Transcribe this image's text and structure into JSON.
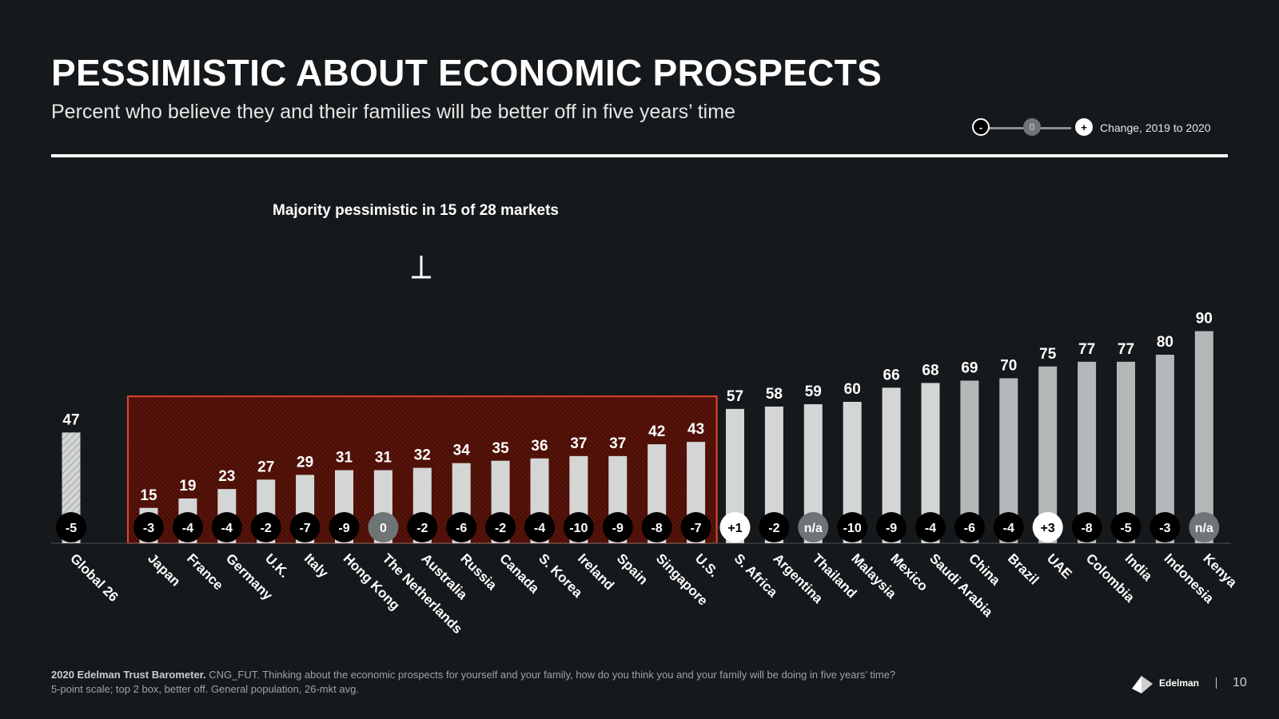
{
  "header": {
    "title": "PESSIMISTIC ABOUT ECONOMIC PROSPECTS",
    "subtitle": "Percent who believe they and their families will be better off in five years’ time"
  },
  "legend": {
    "neg_symbol": "-",
    "zero_symbol": "0",
    "pos_symbol": "+",
    "label": "Change, 2019 to 2020"
  },
  "annotation": "Majority pessimistic in 15 of 28 markets",
  "colors": {
    "background": "#16191b",
    "bar_light": "#d4d6d6",
    "bar_dark": "#b4b8b8",
    "highlight_fill": "#5a1208",
    "highlight_border": "#e2452f",
    "badge_zero": "#6f7476"
  },
  "chart_data": {
    "type": "bar",
    "title": "Percent who believe they and their families will be better off in five years’ time",
    "ylim": [
      0,
      100
    ],
    "categories": [
      "Global 26",
      "Japan",
      "France",
      "Germany",
      "U.K.",
      "Italy",
      "Hong Kong",
      "The Netherlands",
      "Australia",
      "Russia",
      "Canada",
      "S. Korea",
      "Ireland",
      "Spain",
      "Singapore",
      "U.S.",
      "S. Africa",
      "Argentina",
      "Thailand",
      "Malaysia",
      "Mexico",
      "Saudi Arabia",
      "China",
      "Brazil",
      "UAE",
      "Colombia",
      "India",
      "Indonesia",
      "Kenya"
    ],
    "values": [
      47,
      15,
      19,
      23,
      27,
      29,
      31,
      31,
      32,
      34,
      35,
      36,
      37,
      37,
      42,
      43,
      57,
      58,
      59,
      60,
      66,
      68,
      69,
      70,
      75,
      77,
      77,
      80,
      90
    ],
    "change": [
      "-5",
      "-3",
      "-4",
      "-4",
      "-2",
      "-7",
      "-9",
      "0",
      "-2",
      "-6",
      "-2",
      "-4",
      "-10",
      "-9",
      "-8",
      "-7",
      "+1",
      "-2",
      "n/a",
      "-10",
      "-9",
      "-4",
      "-6",
      "-4",
      "+3",
      "-8",
      "-5",
      "-3",
      "n/a"
    ],
    "highlighted_range": [
      "Japan",
      "U.S."
    ]
  },
  "footer": {
    "source_bold": "2020 Edelman Trust Barometer.",
    "source_text": " CNG_FUT. Thinking about the economic prospects for yourself and your family, how do you think you and your family will be doing in five years’ time?",
    "note": "5-point scale; top 2 box, better off. General population, 26-mkt avg."
  },
  "brand": "Edelman",
  "page_number": "10"
}
